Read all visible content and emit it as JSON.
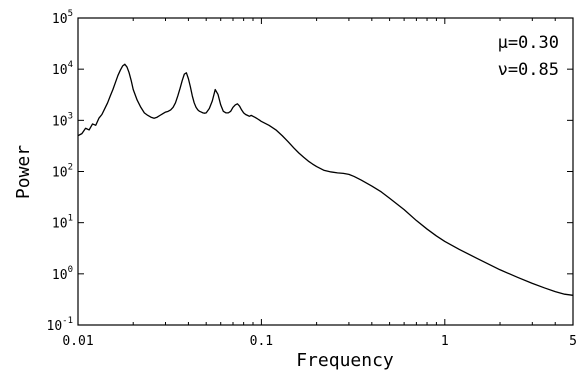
{
  "chart_data": {
    "type": "line",
    "title": "",
    "xlabel": "Frequency",
    "ylabel": "Power",
    "xscale": "log",
    "yscale": "log",
    "xlim": [
      0.01,
      5
    ],
    "ylim": [
      0.1,
      100000
    ],
    "grid": false,
    "xticks": [
      {
        "value": 0.01,
        "label": "0.01"
      },
      {
        "value": 0.1,
        "label": "0.1"
      },
      {
        "value": 1,
        "label": "1"
      },
      {
        "value": 5,
        "label": "5"
      }
    ],
    "yticks": [
      {
        "value": 0.1,
        "base": "10",
        "exp": "-1"
      },
      {
        "value": 1,
        "base": "10",
        "exp": "0"
      },
      {
        "value": 10,
        "base": "10",
        "exp": "1"
      },
      {
        "value": 100,
        "base": "10",
        "exp": "2"
      },
      {
        "value": 1000,
        "base": "10",
        "exp": "3"
      },
      {
        "value": 10000,
        "base": "10",
        "exp": "4"
      },
      {
        "value": 100000,
        "base": "10",
        "exp": "5"
      }
    ],
    "annotations": [
      "μ=0.30",
      "ν=0.85"
    ],
    "series": [
      {
        "x": [
          0.01,
          0.0105,
          0.011,
          0.0115,
          0.012,
          0.0125,
          0.013,
          0.0135,
          0.014,
          0.0145,
          0.015,
          0.0155,
          0.016,
          0.0165,
          0.017,
          0.0175,
          0.018,
          0.0185,
          0.019,
          0.0195,
          0.02,
          0.021,
          0.022,
          0.023,
          0.024,
          0.025,
          0.026,
          0.027,
          0.028,
          0.029,
          0.03,
          0.031,
          0.032,
          0.033,
          0.034,
          0.035,
          0.036,
          0.037,
          0.038,
          0.039,
          0.04,
          0.041,
          0.042,
          0.043,
          0.044,
          0.045,
          0.046,
          0.047,
          0.048,
          0.049,
          0.05,
          0.052,
          0.054,
          0.056,
          0.058,
          0.06,
          0.062,
          0.064,
          0.066,
          0.068,
          0.07,
          0.072,
          0.074,
          0.076,
          0.078,
          0.08,
          0.082,
          0.084,
          0.086,
          0.088,
          0.09,
          0.092,
          0.094,
          0.096,
          0.098,
          0.1,
          0.11,
          0.12,
          0.13,
          0.14,
          0.15,
          0.16,
          0.17,
          0.18,
          0.19,
          0.2,
          0.22,
          0.24,
          0.26,
          0.28,
          0.3,
          0.32,
          0.35,
          0.4,
          0.45,
          0.5,
          0.6,
          0.7,
          0.8,
          0.9,
          1.0,
          1.2,
          1.5,
          2.0,
          2.5,
          3.0,
          3.5,
          4.0,
          4.5,
          5.0
        ],
        "y": [
          500,
          550,
          700,
          650,
          850,
          800,
          1100,
          1300,
          1700,
          2200,
          3000,
          4000,
          5500,
          7500,
          9500,
          11500,
          12500,
          11000,
          8500,
          6000,
          4000,
          2500,
          1800,
          1400,
          1250,
          1150,
          1100,
          1150,
          1250,
          1350,
          1450,
          1500,
          1600,
          1800,
          2200,
          3000,
          4200,
          6000,
          8000,
          8500,
          6500,
          4500,
          3000,
          2200,
          1800,
          1600,
          1500,
          1450,
          1400,
          1380,
          1400,
          1700,
          2400,
          4000,
          3200,
          2000,
          1500,
          1400,
          1400,
          1500,
          1800,
          2000,
          2100,
          1900,
          1600,
          1400,
          1300,
          1250,
          1200,
          1250,
          1200,
          1150,
          1100,
          1050,
          1000,
          950,
          800,
          650,
          500,
          380,
          290,
          230,
          190,
          160,
          140,
          125,
          105,
          98,
          94,
          92,
          88,
          80,
          68,
          52,
          40,
          30,
          18,
          11,
          7.5,
          5.5,
          4.3,
          3.0,
          2.0,
          1.2,
          0.85,
          0.65,
          0.53,
          0.45,
          0.4,
          0.38
        ]
      }
    ]
  }
}
